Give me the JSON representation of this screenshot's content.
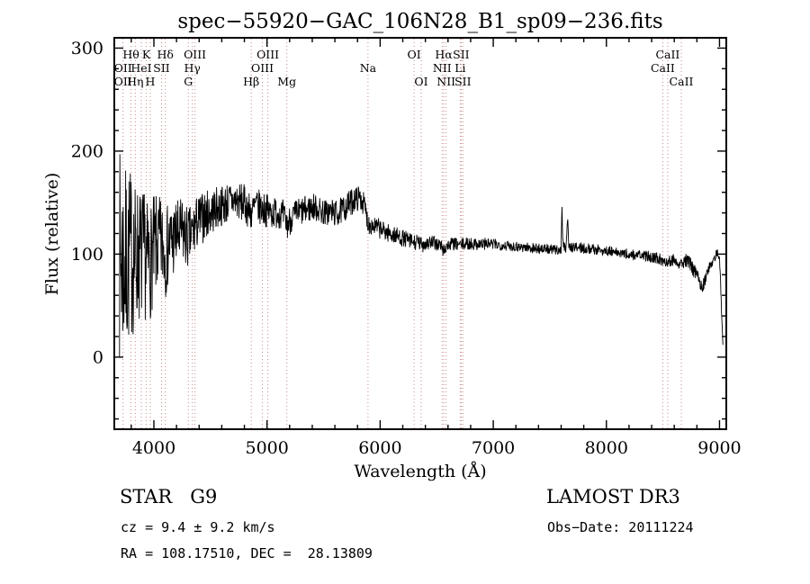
{
  "title": "spec−55920−GAC_106N28_B1_sp09−236.fits",
  "footer": {
    "class_label": "STAR   G9",
    "cz": "cz = 9.4 ± 9.2 km/s",
    "radec": "RA = 108.17510, DEC =  28.13809",
    "survey": "LAMOST DR3",
    "obs_date": "Obs−Date: 20111224"
  },
  "colors": {
    "spectrum": "#000000",
    "frame": "#000000",
    "line_marker": "#c98b8b",
    "line_label": "#8b2f2f"
  },
  "chart_data": {
    "type": "line",
    "title": "spec−55920−GAC_106N28_B1_sp09−236.fits",
    "xlabel": "Wavelength (Å)",
    "ylabel": "Flux (relative)",
    "xlim": [
      3650,
      9060
    ],
    "ylim": [
      -70,
      310
    ],
    "x_ticks": [
      4000,
      5000,
      6000,
      7000,
      8000,
      9000
    ],
    "y_ticks": [
      0,
      100,
      200,
      300
    ],
    "x_minor_step": 200,
    "y_minor_step": 20,
    "legend": "none",
    "grid": false,
    "noise_seed": 7,
    "sample_step": 3,
    "spectral_lines": [
      3727,
      3798,
      3835,
      3889,
      3933,
      3968,
      4068,
      4101,
      4305,
      4340,
      4363,
      4861,
      4959,
      5007,
      5175,
      5893,
      6300,
      6363,
      6548,
      6563,
      6583,
      6708,
      6716,
      6731,
      8498,
      8542,
      8662
    ],
    "line_labels": [
      {
        "text": "Hθ",
        "wavelength": 3798,
        "row": 1
      },
      {
        "text": "K",
        "wavelength": 3933,
        "row": 1
      },
      {
        "text": "Hδ",
        "wavelength": 4101,
        "row": 1
      },
      {
        "text": "OIII",
        "wavelength": 4363,
        "row": 1
      },
      {
        "text": "OIII",
        "wavelength": 5007,
        "row": 1
      },
      {
        "text": "OI",
        "wavelength": 6300,
        "row": 1
      },
      {
        "text": "Hα",
        "wavelength": 6563,
        "row": 1
      },
      {
        "text": "SII",
        "wavelength": 6716,
        "row": 1
      },
      {
        "text": "CaII",
        "wavelength": 8542,
        "row": 1
      },
      {
        "text": "OII",
        "wavelength": 3727,
        "row": 2
      },
      {
        "text": "HeI",
        "wavelength": 3889,
        "row": 2
      },
      {
        "text": "SII",
        "wavelength": 4068,
        "row": 2
      },
      {
        "text": "Hγ",
        "wavelength": 4340,
        "row": 2
      },
      {
        "text": "OIII",
        "wavelength": 4959,
        "row": 2
      },
      {
        "text": "Na",
        "wavelength": 5893,
        "row": 2
      },
      {
        "text": "NII",
        "wavelength": 6548,
        "row": 2
      },
      {
        "text": "Li",
        "wavelength": 6708,
        "row": 2
      },
      {
        "text": "CaII",
        "wavelength": 8498,
        "row": 2
      },
      {
        "text": "OII",
        "wavelength": 3727,
        "row": 3
      },
      {
        "text": "Hη",
        "wavelength": 3835,
        "row": 3
      },
      {
        "text": "H",
        "wavelength": 3968,
        "row": 3
      },
      {
        "text": "G",
        "wavelength": 4305,
        "row": 3
      },
      {
        "text": "Hβ",
        "wavelength": 4861,
        "row": 3
      },
      {
        "text": "Mg",
        "wavelength": 5175,
        "row": 3
      },
      {
        "text": "OI",
        "wavelength": 6363,
        "row": 3
      },
      {
        "text": "NII",
        "wavelength": 6583,
        "row": 3
      },
      {
        "text": "SII",
        "wavelength": 6731,
        "row": 3
      },
      {
        "text": "CaII",
        "wavelength": 8662,
        "row": 3
      }
    ],
    "envelope": [
      [
        3690,
        80
      ],
      [
        3700,
        100
      ],
      [
        3720,
        95
      ],
      [
        3750,
        90
      ],
      [
        3780,
        98
      ],
      [
        3800,
        100
      ],
      [
        3830,
        96
      ],
      [
        3860,
        100
      ],
      [
        3890,
        98
      ],
      [
        3920,
        100
      ],
      [
        3933,
        90
      ],
      [
        3950,
        95
      ],
      [
        3968,
        92
      ],
      [
        4000,
        105
      ],
      [
        4050,
        110
      ],
      [
        4080,
        108
      ],
      [
        4101,
        100
      ],
      [
        4130,
        110
      ],
      [
        4160,
        113
      ],
      [
        4200,
        117
      ],
      [
        4250,
        121
      ],
      [
        4305,
        115
      ],
      [
        4340,
        120
      ],
      [
        4380,
        130
      ],
      [
        4420,
        134
      ],
      [
        4460,
        138
      ],
      [
        4500,
        141
      ],
      [
        4550,
        144
      ],
      [
        4600,
        147
      ],
      [
        4650,
        150
      ],
      [
        4700,
        152
      ],
      [
        4750,
        151
      ],
      [
        4800,
        149
      ],
      [
        4861,
        140
      ],
      [
        4900,
        147
      ],
      [
        4959,
        144
      ],
      [
        5007,
        142
      ],
      [
        5050,
        140
      ],
      [
        5100,
        141
      ],
      [
        5140,
        138
      ],
      [
        5175,
        128
      ],
      [
        5220,
        136
      ],
      [
        5270,
        140
      ],
      [
        5320,
        142
      ],
      [
        5370,
        144
      ],
      [
        5420,
        146
      ],
      [
        5470,
        142
      ],
      [
        5520,
        140
      ],
      [
        5570,
        141
      ],
      [
        5620,
        139
      ],
      [
        5670,
        143
      ],
      [
        5720,
        148
      ],
      [
        5770,
        153
      ],
      [
        5820,
        155
      ],
      [
        5860,
        148
      ],
      [
        5893,
        130
      ],
      [
        5930,
        128
      ],
      [
        5970,
        126
      ],
      [
        6010,
        124
      ],
      [
        6060,
        121
      ],
      [
        6110,
        119
      ],
      [
        6160,
        117
      ],
      [
        6210,
        115
      ],
      [
        6260,
        113
      ],
      [
        6300,
        111
      ],
      [
        6340,
        111
      ],
      [
        6363,
        109
      ],
      [
        6400,
        111
      ],
      [
        6450,
        111
      ],
      [
        6500,
        110
      ],
      [
        6540,
        108
      ],
      [
        6563,
        103
      ],
      [
        6590,
        108
      ],
      [
        6640,
        110
      ],
      [
        6700,
        109
      ],
      [
        6760,
        110
      ],
      [
        6850,
        110
      ],
      [
        6950,
        110
      ],
      [
        7050,
        109
      ],
      [
        7150,
        108
      ],
      [
        7250,
        107
      ],
      [
        7350,
        106
      ],
      [
        7450,
        105
      ],
      [
        7550,
        104
      ],
      [
        7600,
        104
      ],
      [
        7607,
        150
      ],
      [
        7614,
        112
      ],
      [
        7640,
        104
      ],
      [
        7658,
        136
      ],
      [
        7668,
        106
      ],
      [
        7700,
        107
      ],
      [
        7780,
        106
      ],
      [
        7860,
        105
      ],
      [
        7940,
        104
      ],
      [
        8020,
        103
      ],
      [
        8100,
        101
      ],
      [
        8180,
        100
      ],
      [
        8260,
        99
      ],
      [
        8340,
        98
      ],
      [
        8420,
        97
      ],
      [
        8498,
        94
      ],
      [
        8542,
        93
      ],
      [
        8600,
        95
      ],
      [
        8662,
        91
      ],
      [
        8700,
        94
      ],
      [
        8750,
        89
      ],
      [
        8800,
        79
      ],
      [
        8850,
        68
      ],
      [
        8900,
        84
      ],
      [
        8950,
        97
      ],
      [
        8980,
        101
      ],
      [
        9000,
        96
      ],
      [
        9010,
        70
      ],
      [
        9020,
        40
      ],
      [
        9030,
        12
      ]
    ],
    "noise_sigma": [
      [
        3690,
        105
      ],
      [
        3750,
        95
      ],
      [
        3850,
        70
      ],
      [
        3950,
        58
      ],
      [
        4050,
        46
      ],
      [
        4150,
        40
      ],
      [
        4250,
        33
      ],
      [
        4350,
        28
      ],
      [
        4450,
        24
      ],
      [
        4550,
        21
      ],
      [
        4700,
        19
      ],
      [
        4850,
        18
      ],
      [
        5000,
        16
      ],
      [
        5150,
        15
      ],
      [
        5300,
        14
      ],
      [
        5450,
        13
      ],
      [
        5600,
        13
      ],
      [
        5750,
        13
      ],
      [
        5900,
        10
      ],
      [
        6050,
        9
      ],
      [
        6200,
        8
      ],
      [
        6350,
        8
      ],
      [
        6500,
        7
      ],
      [
        6700,
        6
      ],
      [
        6900,
        6
      ],
      [
        7100,
        5
      ],
      [
        7300,
        5
      ],
      [
        7500,
        5
      ],
      [
        7607,
        4
      ],
      [
        7700,
        5
      ],
      [
        8000,
        5
      ],
      [
        8300,
        5
      ],
      [
        8600,
        6
      ],
      [
        8800,
        7
      ],
      [
        8950,
        5
      ],
      [
        9030,
        3
      ]
    ]
  }
}
